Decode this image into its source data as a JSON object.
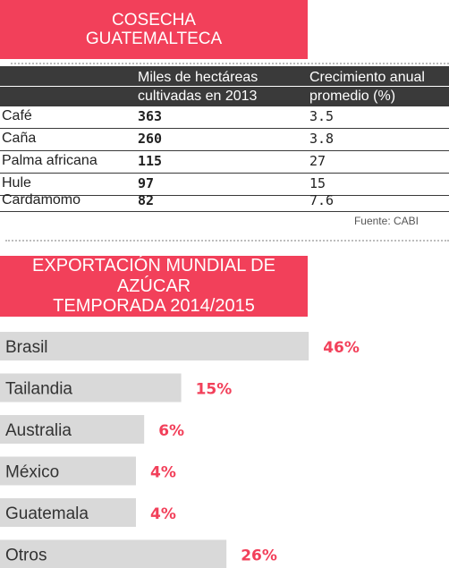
{
  "harvest": {
    "title_lines": [
      "COSECHA",
      "GUATEMALTECA"
    ],
    "col_header_1": [
      "Miles de hectáreas",
      "cultivadas en 2013"
    ],
    "col_header_2": [
      "Crecimiento anual",
      "promedio (%)"
    ],
    "rows": [
      {
        "crop": "Café",
        "hectares": "363",
        "growth": "3.5"
      },
      {
        "crop": "Caña",
        "hectares": "260",
        "growth": "3.8"
      },
      {
        "crop": "Palma africana",
        "hectares": "115",
        "growth": "27"
      },
      {
        "crop": "Hule",
        "hectares": "97",
        "growth": "15"
      },
      {
        "crop": "Cardamomo",
        "hectares": "82",
        "growth": "7.6"
      }
    ],
    "source": "Fuente: CABI"
  },
  "export": {
    "title_lines": [
      "EXPORTACIÓN MUNDIAL DE AZÚCAR",
      "TEMPORADA 2014/2015"
    ]
  },
  "colors": {
    "accent": "#f2405a",
    "bar": "#d9d9d9",
    "header": "#3a3a3a"
  },
  "chart_data": [
    {
      "type": "table",
      "title": "COSECHA GUATEMALTECA",
      "columns": [
        "",
        "Miles de hectáreas cultivadas en 2013",
        "Crecimiento anual promedio (%)"
      ],
      "rows": [
        [
          "Café",
          363,
          3.5
        ],
        [
          "Caña",
          260,
          3.8
        ],
        [
          "Palma africana",
          115,
          27
        ],
        [
          "Hule",
          97,
          15
        ],
        [
          "Cardamomo",
          82,
          7.6
        ]
      ]
    },
    {
      "type": "bar",
      "orientation": "horizontal",
      "title": "EXPORTACIÓN MUNDIAL DE AZÚCAR TEMPORADA 2014/2015",
      "categories": [
        "Brasil",
        "Tailandia",
        "Australia",
        "México",
        "Guatemala",
        "Otros"
      ],
      "values": [
        46,
        15,
        6,
        4,
        4,
        26
      ],
      "value_labels": [
        "46%",
        "15%",
        "6%",
        "4%",
        "4%",
        "26%"
      ],
      "unit": "%"
    }
  ]
}
